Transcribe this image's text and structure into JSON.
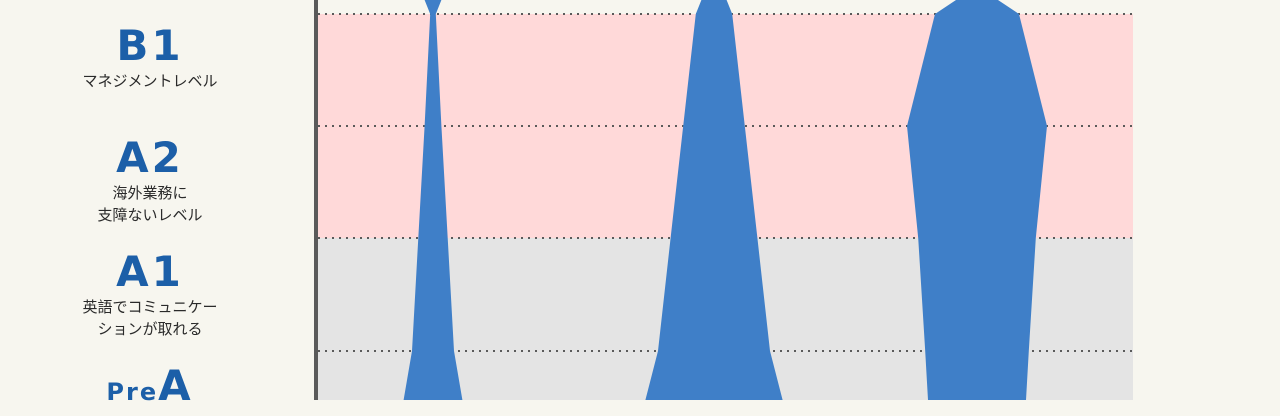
{
  "levels": [
    {
      "code": "B1",
      "desc": [
        "マネジメントレベル"
      ]
    },
    {
      "code": "A2",
      "desc": [
        "海外業務に",
        "支障ないレベル"
      ]
    },
    {
      "code": "A1",
      "desc": [
        "英語でコミュニケー",
        "ションが取れる"
      ]
    },
    {
      "code_prefix": "Pre",
      "code": "A",
      "desc": []
    }
  ],
  "chart_data": {
    "type": "area",
    "orientation": "vertical-bands",
    "y_levels": [
      "B1",
      "A2",
      "A1",
      "PreA"
    ],
    "bands": [
      {
        "from": "A1",
        "to": "B1",
        "color": "#ffd9d9"
      },
      {
        "from": "PreA",
        "to": "A1",
        "color": "#e4e4e4"
      }
    ],
    "grid": true,
    "shape_color": "#3f7fc8",
    "shapes": [
      {
        "width_at": {
          "top": 0.12,
          "B1": 0.04,
          "A2": 0.12,
          "A1": 0.21,
          "PreA": 0.3,
          "bottom": 0.42
        }
      },
      {
        "width_at": {
          "top": 0.18,
          "B1": 0.26,
          "A2": 0.44,
          "A1": 0.62,
          "PreA": 0.8,
          "bottom": 0.98
        }
      },
      {
        "width_at": {
          "top": 0.3,
          "B1": 0.6,
          "A2": 1.0,
          "A1": 0.84,
          "PreA": 0.74,
          "bottom": 0.7
        }
      }
    ]
  }
}
